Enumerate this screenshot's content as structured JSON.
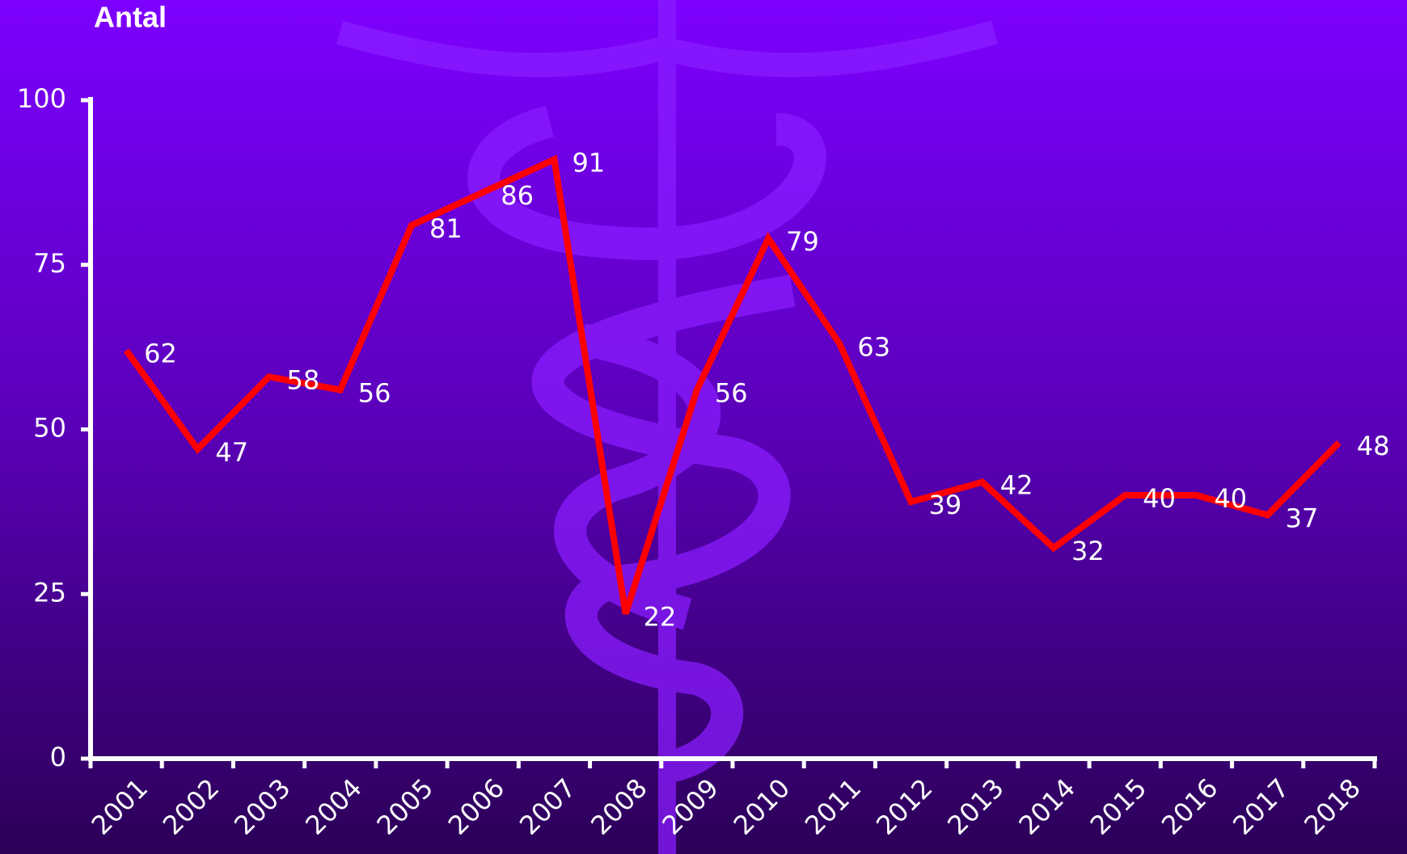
{
  "chart_data": {
    "type": "line",
    "title": "Antal",
    "categories": [
      "2001",
      "2002",
      "2003",
      "2004",
      "2005",
      "2006",
      "2007",
      "2008",
      "2009",
      "2010",
      "2011",
      "2012",
      "2013",
      "2014",
      "2015",
      "2016",
      "2017",
      "2018"
    ],
    "series": [
      {
        "name": "Antal",
        "color": "#ff0000",
        "values": [
          62,
          47,
          58,
          56,
          81,
          86,
          91,
          22,
          56,
          79,
          63,
          39,
          42,
          32,
          40,
          40,
          37,
          48
        ]
      }
    ],
    "ylim": [
      0,
      100
    ],
    "yticks": [
      0,
      25,
      50,
      75,
      100
    ],
    "grid": false
  }
}
